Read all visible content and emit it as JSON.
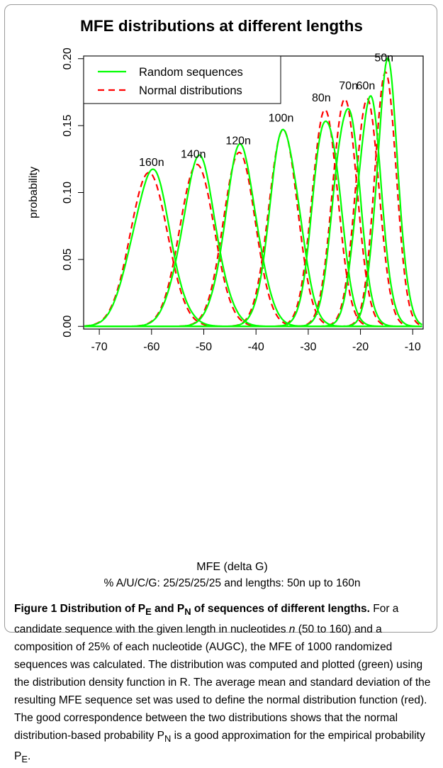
{
  "figure_title": "MFE distributions at different lengths",
  "subtitle": "% A/U/C/G: 25/25/25/25 and lengths: 50n up to 160n",
  "caption": {
    "title_parts": [
      "Figure 1 Distribution of P",
      "E",
      " and P",
      "N",
      " of sequences of different lengths."
    ],
    "body_parts": [
      " For a candidate sequence with the given length in nucleotides ",
      "n",
      " (50 to 160) and a composition of 25% of each nucleotide (AUGC), the MFE of 1000 randomized sequences was calculated. The distribution was computed and plotted (green) using the distribution density function in R. The average mean and standard deviation of the resulting MFE sequence set was used to define the normal distribution function (red). The good correspondence between the two distributions shows that the normal distribution-based probability P",
      "N",
      " is a good approximation for the empirical probability P",
      "E",
      "."
    ]
  },
  "chart_data": {
    "type": "line",
    "title": "MFE distributions at different lengths",
    "xlabel": "MFE (delta G)",
    "ylabel": "probability",
    "xlim": [
      -73,
      -8
    ],
    "ylim": [
      -0.002,
      0.202
    ],
    "xticks": [
      -70,
      -60,
      -50,
      -40,
      -30,
      -20,
      -10
    ],
    "xtick_labels": [
      "-70",
      "-60",
      "-50",
      "-40",
      "-30",
      "-20",
      "-10"
    ],
    "yticks": [
      0,
      0.05,
      0.1,
      0.15,
      0.2
    ],
    "ytick_labels": [
      "0.00",
      "0.05",
      "0.10",
      "0.15",
      "0.20"
    ],
    "grid": false,
    "legend_position": "top-left",
    "series_meta": [
      {
        "name": "Random sequences",
        "color": "#00ff00",
        "dash": "solid"
      },
      {
        "name": "Normal distributions",
        "color": "#ff0000",
        "dash": "dashed"
      }
    ],
    "groups": [
      {
        "label": "160n",
        "label_x": -60,
        "label_y": 0.12,
        "mean": -60.5,
        "sd": 3.55,
        "peak": 0.115
      },
      {
        "label": "140n",
        "label_x": -52,
        "label_y": 0.126,
        "mean": -51.3,
        "sd": 3.3,
        "peak": 0.121
      },
      {
        "label": "120n",
        "label_x": -43.4,
        "label_y": 0.136,
        "mean": -43.2,
        "sd": 3.05,
        "peak": 0.13
      },
      {
        "label": "100n",
        "label_x": -35.2,
        "label_y": 0.153,
        "mean": -34.8,
        "sd": 2.75,
        "peak": 0.147
      },
      {
        "label": "80n",
        "label_x": -27.5,
        "label_y": 0.168,
        "mean": -26.8,
        "sd": 2.45,
        "peak": 0.162
      },
      {
        "label": "70n",
        "label_x": -22.3,
        "label_y": 0.177,
        "mean": -23.0,
        "sd": 2.35,
        "peak": 0.17
      },
      {
        "label": "60n",
        "label_x": -19,
        "label_y": 0.177,
        "mean": -18.7,
        "sd": 2.25,
        "peak": 0.17
      },
      {
        "label": "50n",
        "label_x": -15.5,
        "label_y": 0.198,
        "mean": -15.2,
        "sd": 2.05,
        "peak": 0.19
      }
    ]
  }
}
